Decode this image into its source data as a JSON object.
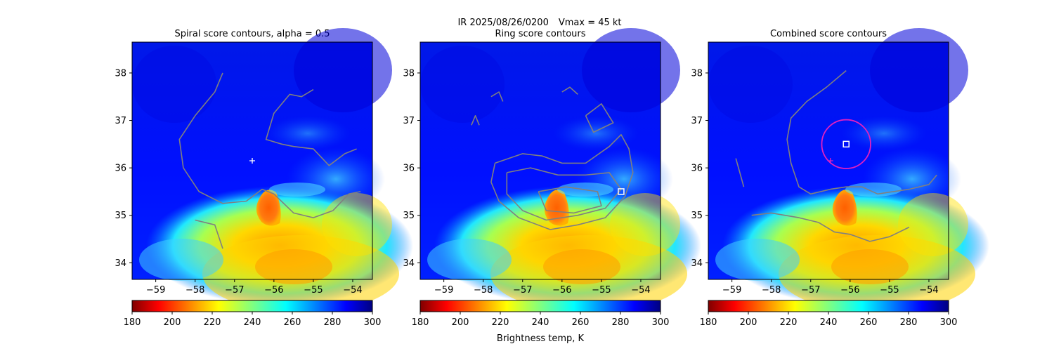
{
  "figure": {
    "suptitle_left": "IR  2025/08/26/0200",
    "suptitle_right": "Vmax = 45 kt",
    "colorbar_label": "Brightness temp, K"
  },
  "chart_data": [
    {
      "type": "heatmap",
      "title": "Spiral score contours, alpha =  0.5",
      "xlim": [
        -59.6,
        -53.5
      ],
      "ylim": [
        33.65,
        38.65
      ],
      "xticks": [
        -59,
        -58,
        -57,
        -56,
        -55,
        -54
      ],
      "xtick_labels": [
        "−59",
        "−58",
        "−57",
        "−56",
        "−55",
        "−54"
      ],
      "yticks": [
        34,
        35,
        36,
        37,
        38
      ],
      "ytick_labels": [
        "34",
        "35",
        "36",
        "37",
        "38"
      ],
      "colorbar": {
        "min": 180,
        "max": 300,
        "ticks": [
          "180",
          "200",
          "220",
          "240",
          "260",
          "280",
          "300"
        ],
        "cmap": "jet_r"
      },
      "center_marker": {
        "lon": -56.55,
        "lat": 36.15,
        "symbol": "+"
      },
      "contours": [
        [
          [
            -57.3,
            38.0
          ],
          [
            -57.5,
            37.6
          ],
          [
            -58.0,
            37.1
          ],
          [
            -58.4,
            36.6
          ],
          [
            -58.3,
            36.0
          ],
          [
            -57.9,
            35.5
          ],
          [
            -57.3,
            35.25
          ],
          [
            -56.7,
            35.3
          ],
          [
            -56.3,
            35.55
          ],
          [
            -56.0,
            35.45
          ],
          [
            -55.5,
            35.05
          ],
          [
            -55.0,
            34.95
          ],
          [
            -54.5,
            35.1
          ],
          [
            -54.1,
            35.45
          ],
          [
            -53.8,
            35.5
          ]
        ],
        [
          [
            -55.0,
            37.65
          ],
          [
            -55.3,
            37.5
          ],
          [
            -55.6,
            37.55
          ],
          [
            -56.0,
            37.15
          ],
          [
            -56.2,
            36.6
          ],
          [
            -55.8,
            36.5
          ],
          [
            -55.5,
            36.45
          ],
          [
            -55.0,
            36.4
          ],
          [
            -54.6,
            36.05
          ],
          [
            -54.2,
            36.3
          ],
          [
            -53.9,
            36.4
          ]
        ],
        [
          [
            -58.0,
            34.9
          ],
          [
            -57.5,
            34.8
          ],
          [
            -57.3,
            34.3
          ]
        ]
      ]
    },
    {
      "type": "heatmap",
      "title": "Ring score contours",
      "xlim": [
        -59.6,
        -53.5
      ],
      "ylim": [
        33.65,
        38.65
      ],
      "xticks": [
        -59,
        -58,
        -57,
        -56,
        -55,
        -54
      ],
      "xtick_labels": [
        "−59",
        "−58",
        "−57",
        "−56",
        "−55",
        "−54"
      ],
      "yticks": [
        34,
        35,
        36,
        37,
        38
      ],
      "ytick_labels": [
        "34",
        "35",
        "36",
        "37",
        "38"
      ],
      "colorbar": {
        "min": 180,
        "max": 300,
        "ticks": [
          "180",
          "200",
          "220",
          "240",
          "260",
          "280",
          "300"
        ],
        "cmap": "jet_r"
      },
      "best_fit_marker": {
        "lon": -54.5,
        "lat": 35.5,
        "symbol": "square"
      },
      "contours": [
        [
          [
            -57.7,
            36.1
          ],
          [
            -57.0,
            36.3
          ],
          [
            -56.5,
            36.25
          ],
          [
            -56.0,
            36.1
          ],
          [
            -55.4,
            36.1
          ],
          [
            -54.8,
            36.45
          ],
          [
            -54.5,
            36.7
          ],
          [
            -54.3,
            36.4
          ],
          [
            -54.2,
            35.9
          ],
          [
            -54.4,
            35.4
          ],
          [
            -54.9,
            34.95
          ],
          [
            -55.6,
            34.8
          ],
          [
            -56.3,
            34.7
          ],
          [
            -57.1,
            34.95
          ],
          [
            -57.6,
            35.3
          ],
          [
            -57.8,
            35.7
          ],
          [
            -57.7,
            36.1
          ]
        ],
        [
          [
            -57.4,
            35.9
          ],
          [
            -56.8,
            36.0
          ],
          [
            -56.1,
            35.85
          ],
          [
            -55.4,
            35.85
          ],
          [
            -54.8,
            35.9
          ],
          [
            -54.5,
            35.55
          ],
          [
            -54.9,
            35.15
          ],
          [
            -55.6,
            35.0
          ],
          [
            -56.4,
            34.9
          ],
          [
            -57.0,
            35.1
          ],
          [
            -57.4,
            35.45
          ],
          [
            -57.4,
            35.9
          ]
        ],
        [
          [
            -56.6,
            35.5
          ],
          [
            -55.9,
            35.6
          ],
          [
            -55.1,
            35.5
          ],
          [
            -55.0,
            35.2
          ],
          [
            -55.7,
            35.05
          ],
          [
            -56.4,
            35.1
          ],
          [
            -56.6,
            35.5
          ]
        ],
        [
          [
            -55.4,
            37.1
          ],
          [
            -55.0,
            37.35
          ],
          [
            -54.7,
            36.95
          ],
          [
            -55.2,
            36.75
          ],
          [
            -55.4,
            37.1
          ]
        ],
        [
          [
            -57.8,
            37.5
          ],
          [
            -57.6,
            37.6
          ],
          [
            -57.5,
            37.4
          ]
        ],
        [
          [
            -58.3,
            36.9
          ],
          [
            -58.2,
            37.1
          ],
          [
            -58.1,
            36.9
          ]
        ],
        [
          [
            -56.0,
            37.6
          ],
          [
            -55.8,
            37.7
          ],
          [
            -55.6,
            37.55
          ]
        ]
      ]
    },
    {
      "type": "heatmap",
      "title": "Combined score contours",
      "xlim": [
        -59.6,
        -53.5
      ],
      "ylim": [
        33.65,
        38.65
      ],
      "xticks": [
        -59,
        -58,
        -57,
        -56,
        -55,
        -54
      ],
      "xtick_labels": [
        "−59",
        "−58",
        "−57",
        "−56",
        "−55",
        "−54"
      ],
      "yticks": [
        34,
        35,
        36,
        37,
        38
      ],
      "ytick_labels": [
        "34",
        "35",
        "36",
        "37",
        "38"
      ],
      "colorbar": {
        "min": 180,
        "max": 300,
        "ticks": [
          "180",
          "200",
          "220",
          "240",
          "260",
          "280",
          "300"
        ],
        "cmap": "jet_r"
      },
      "center_marker": {
        "lon": -56.5,
        "lat": 36.15,
        "symbol": "+"
      },
      "best_fit_marker": {
        "lon": -56.1,
        "lat": 36.5,
        "symbol": "square"
      },
      "ring": {
        "lon": -56.1,
        "lat": 36.5,
        "radius_deg": 0.62,
        "color": "#e020c0"
      },
      "contours": [
        [
          [
            -56.1,
            38.05
          ],
          [
            -56.6,
            37.7
          ],
          [
            -57.1,
            37.4
          ],
          [
            -57.5,
            37.05
          ],
          [
            -57.6,
            36.6
          ],
          [
            -57.5,
            36.1
          ],
          [
            -57.3,
            35.6
          ],
          [
            -57.0,
            35.45
          ],
          [
            -56.5,
            35.55
          ],
          [
            -56.1,
            35.6
          ],
          [
            -55.7,
            35.6
          ],
          [
            -55.3,
            35.45
          ],
          [
            -54.9,
            35.5
          ],
          [
            -54.5,
            35.55
          ],
          [
            -54.0,
            35.65
          ],
          [
            -53.8,
            35.85
          ]
        ],
        [
          [
            -58.9,
            36.2
          ],
          [
            -58.8,
            35.9
          ],
          [
            -58.7,
            35.6
          ]
        ],
        [
          [
            -58.5,
            35.0
          ],
          [
            -58.0,
            35.05
          ],
          [
            -57.3,
            34.95
          ],
          [
            -56.8,
            34.85
          ],
          [
            -56.4,
            34.65
          ],
          [
            -56.0,
            34.6
          ],
          [
            -55.5,
            34.45
          ],
          [
            -55.0,
            34.55
          ],
          [
            -54.5,
            34.75
          ]
        ]
      ]
    }
  ]
}
